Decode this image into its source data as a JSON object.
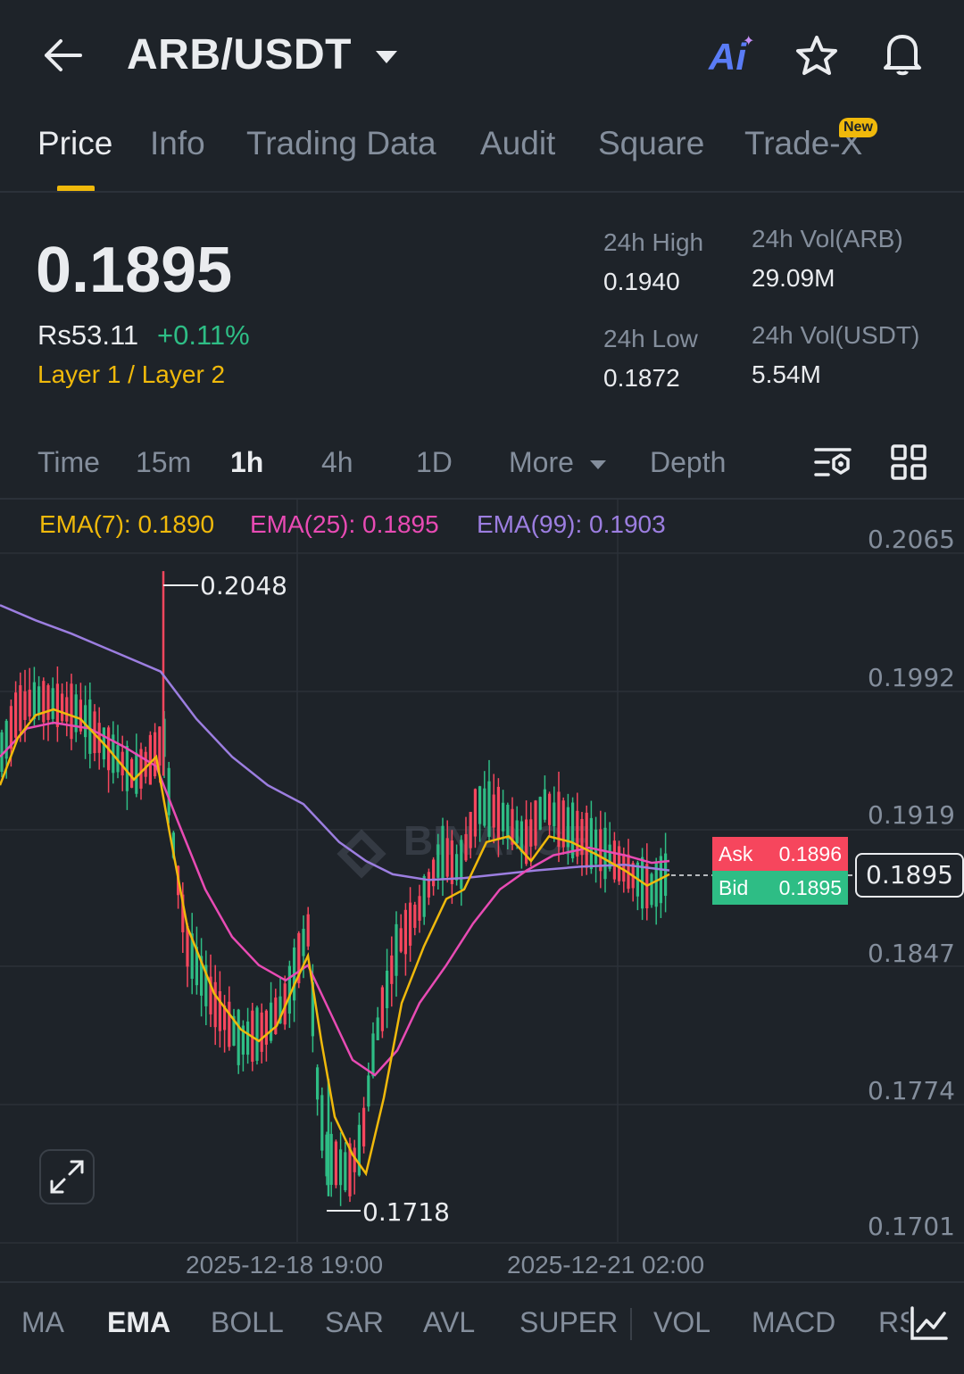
{
  "header": {
    "back_icon": "arrow-left-icon",
    "pair": "ARB/USDT",
    "ai_label": "Ai",
    "icons": [
      "ai-icon",
      "star-icon",
      "bell-icon"
    ]
  },
  "tabs": [
    {
      "label": "Price",
      "active": true
    },
    {
      "label": "Info"
    },
    {
      "label": "Trading Data"
    },
    {
      "label": "Audit"
    },
    {
      "label": "Square"
    },
    {
      "label": "Trade-X",
      "badge": "New"
    }
  ],
  "price": {
    "last": "0.1895",
    "fiat": "Rs53.11",
    "change": "+0.11%",
    "tags": "Layer 1 / Layer 2"
  },
  "stats": {
    "high_label": "24h High",
    "high": "0.1940",
    "low_label": "24h Low",
    "low": "0.1872",
    "vol_arb_label": "24h Vol(ARB)",
    "vol_arb": "29.09M",
    "vol_usdt_label": "24h Vol(USDT)",
    "vol_usdt": "5.54M"
  },
  "timeframes": {
    "time": "Time",
    "m15": "15m",
    "h1": "1h",
    "h4": "4h",
    "d1": "1D",
    "more": "More",
    "depth": "Depth",
    "active": "1h"
  },
  "ema_legend": {
    "ema7": "EMA(7): 0.1890",
    "ema25": "EMA(25): 0.1895",
    "ema99": "EMA(99): 0.1903"
  },
  "orderbook": {
    "ask_label": "Ask",
    "ask": "0.1896",
    "bid_label": "Bid",
    "bid": "0.1895",
    "current": "0.1895"
  },
  "chart_data": {
    "type": "candlestick",
    "y_ticks": [
      "0.2065",
      "0.1992",
      "0.1919",
      "0.1847",
      "0.1774",
      "0.1701"
    ],
    "ylim": [
      0.1701,
      0.2065
    ],
    "x_ticks": [
      "2025-12-18 19:00",
      "2025-12-21 02:00"
    ],
    "annotations": {
      "high": "0.2048",
      "low": "0.1718"
    },
    "watermark": "BINANCE",
    "series": [
      {
        "name": "EMA(7)",
        "color": "#f0b90b"
      },
      {
        "name": "EMA(25)",
        "color": "#e84bb4"
      },
      {
        "name": "EMA(99)",
        "color": "#9c7ee0"
      }
    ],
    "grid": true
  },
  "indicators": [
    {
      "label": "MA"
    },
    {
      "label": "EMA",
      "active": true
    },
    {
      "label": "BOLL"
    },
    {
      "label": "SAR"
    },
    {
      "label": "AVL"
    },
    {
      "label": "SUPER"
    },
    {
      "label": "VOL"
    },
    {
      "label": "MACD"
    },
    {
      "label": "RSI"
    }
  ],
  "colors": {
    "bg": "#1e2329",
    "up": "#2ebd85",
    "down": "#f6465d",
    "accent": "#f0b90b",
    "text": "#eaecef",
    "muted": "#848e9c"
  }
}
